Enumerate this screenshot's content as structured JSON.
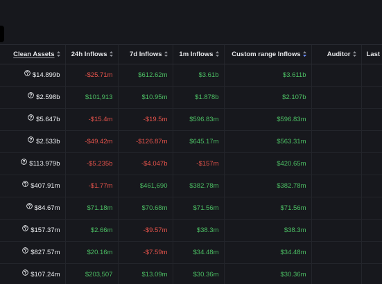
{
  "colors": {
    "background": "#17181d",
    "header_text": "#e6e7ea",
    "text": "#eceef1",
    "positive": "#4cbf64",
    "negative": "#e5534b",
    "grid_line": "#23252b",
    "active_sort": "#6b8cff"
  },
  "columns": [
    {
      "label": "Clean Assets",
      "underlined": true
    },
    {
      "label": "24h Inflows",
      "underlined": false
    },
    {
      "label": "7d Inflows",
      "underlined": false
    },
    {
      "label": "1m Inflows",
      "underlined": false
    },
    {
      "label": "Custom range Inflows",
      "underlined": false
    },
    {
      "label": "Auditor",
      "underlined": false
    },
    {
      "label": "Last",
      "underlined": false
    }
  ],
  "info_icon": "question-circle-icon",
  "rows": [
    {
      "clean_assets": "$14.899b",
      "h24": "-$25.71m",
      "d7": "$612.62m",
      "m1": "$3.61b",
      "custom": "$3.611b"
    },
    {
      "clean_assets": "$2.598b",
      "h24": "$101,913",
      "d7": "$10.95m",
      "m1": "$1.878b",
      "custom": "$2.107b"
    },
    {
      "clean_assets": "$5.647b",
      "h24": "-$15.4m",
      "d7": "-$19.5m",
      "m1": "$596.83m",
      "custom": "$596.83m"
    },
    {
      "clean_assets": "$2.533b",
      "h24": "-$49.42m",
      "d7": "-$126.87m",
      "m1": "$645.17m",
      "custom": "$563.31m"
    },
    {
      "clean_assets": "$113.979b",
      "h24": "-$5.235b",
      "d7": "-$4.047b",
      "m1": "-$157m",
      "custom": "$420.65m"
    },
    {
      "clean_assets": "$407.91m",
      "h24": "-$1.77m",
      "d7": "$461,690",
      "m1": "$382.78m",
      "custom": "$382.78m"
    },
    {
      "clean_assets": "$84.67m",
      "h24": "$71.18m",
      "d7": "$70.68m",
      "m1": "$71.56m",
      "custom": "$71.56m"
    },
    {
      "clean_assets": "$157.37m",
      "h24": "$2.66m",
      "d7": "-$9.57m",
      "m1": "$38.3m",
      "custom": "$38.3m"
    },
    {
      "clean_assets": "$827.57m",
      "h24": "$20.16m",
      "d7": "-$7.59m",
      "m1": "$34.48m",
      "custom": "$34.48m"
    },
    {
      "clean_assets": "$107.24m",
      "h24": "$203,507",
      "d7": "$13.09m",
      "m1": "$30.36m",
      "custom": "$30.36m"
    }
  ]
}
